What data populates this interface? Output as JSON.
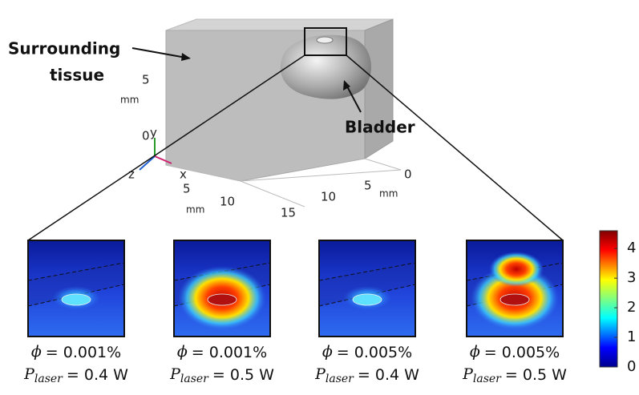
{
  "labels": {
    "surrounding": [
      "Surrounding",
      "tissue"
    ],
    "bladder": "Bladder"
  },
  "axes": {
    "vertical": {
      "ticks": [
        "5",
        "0"
      ],
      "unit": "mm"
    },
    "triad": [
      "y",
      "z",
      "x"
    ],
    "front": {
      "ticks": [
        "5",
        "10",
        "15"
      ],
      "unit": "mm"
    },
    "depth": {
      "ticks": [
        "0",
        "5",
        "10"
      ],
      "unit": "mm"
    }
  },
  "panels": [
    {
      "phi": {
        "symbol": "ϕ",
        "value": "= 0.001%"
      },
      "power": {
        "symbol": "P",
        "subscript": "laser",
        "value": "= 0.4 W"
      }
    },
    {
      "phi": {
        "symbol": "ϕ",
        "value": "= 0.001%"
      },
      "power": {
        "symbol": "P",
        "subscript": "laser",
        "value": "= 0.5 W"
      }
    },
    {
      "phi": {
        "symbol": "ϕ",
        "value": "= 0.005%"
      },
      "power": {
        "symbol": "P",
        "subscript": "laser",
        "value": "= 0.4 W"
      }
    },
    {
      "phi": {
        "symbol": "ϕ",
        "value": "= 0.005%"
      },
      "power": {
        "symbol": "P",
        "subscript": "laser",
        "value": "= 0.5 W"
      }
    }
  ],
  "colorbar": {
    "lim": [
      0,
      4.6
    ],
    "ticks": [
      0,
      1,
      2,
      3,
      4
    ]
  }
}
